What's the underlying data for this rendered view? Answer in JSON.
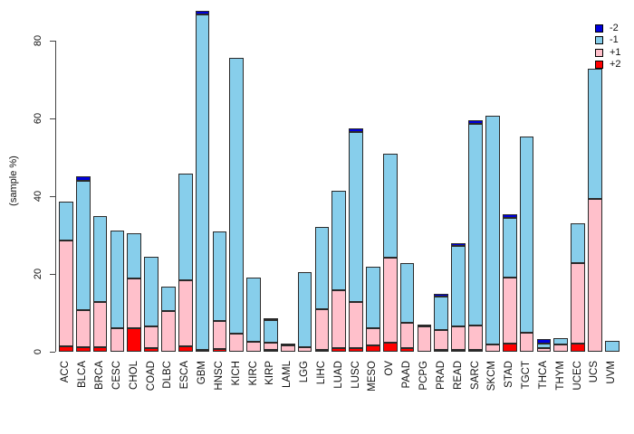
{
  "figure": {
    "background": "#ffffff"
  },
  "axis": {
    "y_title": "(sample %)",
    "y_ticks": [
      "0",
      "20",
      "40",
      "60",
      "80"
    ]
  },
  "legend": {
    "items": [
      {
        "label": "-2",
        "color": "#0000DC"
      },
      {
        "label": "-1",
        "color": "#87CEEB"
      },
      {
        "label": "+1",
        "color": "#FFC0CB"
      },
      {
        "label": "+2",
        "color": "#FF0000"
      }
    ]
  },
  "chart_data": {
    "type": "bar",
    "stacked": true,
    "title": "",
    "xlabel": "",
    "ylabel": "(sample %)",
    "ylim": [
      0,
      88
    ],
    "yticks": [
      0,
      20,
      40,
      60,
      80
    ],
    "grid": false,
    "legend_position": "top-right",
    "categories": [
      "ACC",
      "BLCA",
      "BRCA",
      "CESC",
      "CHOL",
      "COAD",
      "DLBC",
      "ESCA",
      "GBM",
      "HNSC",
      "KICH",
      "KIRC",
      "KIRP",
      "LAML",
      "LGG",
      "LIHC",
      "LUAD",
      "LUSC",
      "MESO",
      "OV",
      "PAAD",
      "PCPG",
      "PRAD",
      "READ",
      "SARC",
      "SKCM",
      "STAD",
      "TGCT",
      "THCA",
      "THYM",
      "UCEC",
      "UCS",
      "UVM"
    ],
    "series": [
      {
        "name": "+2",
        "color": "#FF0000",
        "values": [
          1.5,
          1.2,
          1.2,
          0,
          6.0,
          0.9,
          0,
          1.5,
          0,
          0.8,
          0,
          0,
          0.5,
          0,
          0,
          0.5,
          0.9,
          0.9,
          1.6,
          2.3,
          0.9,
          0,
          0.5,
          0.4,
          0.4,
          0,
          2.1,
          0,
          0,
          0,
          2.1,
          0,
          0
        ]
      },
      {
        "name": "+1",
        "color": "#FFC0CB",
        "values": [
          27.2,
          9.4,
          11.7,
          6.1,
          12.8,
          5.5,
          10.5,
          16.9,
          0.5,
          7.1,
          4.7,
          2.5,
          1.8,
          1.6,
          1.2,
          10.4,
          14.8,
          12.0,
          4.4,
          22.0,
          6.6,
          6.4,
          5.1,
          6.2,
          6.3,
          1.9,
          16.9,
          4.8,
          1.0,
          1.8,
          20.8,
          39.3,
          0
        ]
      },
      {
        "name": "-1",
        "color": "#87CEEB",
        "values": [
          10.0,
          33.4,
          21.9,
          25.0,
          11.6,
          18.1,
          6.2,
          27.5,
          86.3,
          23.0,
          70.8,
          16.6,
          5.9,
          0.5,
          19.3,
          21.2,
          25.7,
          43.7,
          15.9,
          26.6,
          15.3,
          0.5,
          8.5,
          20.5,
          51.8,
          58.8,
          15.5,
          50.5,
          1.1,
          1.6,
          10.1,
          33.5,
          2.7
        ]
      },
      {
        "name": "-2",
        "color": "#0000DC",
        "values": [
          0,
          1.1,
          0,
          0,
          0,
          0,
          0,
          0,
          0.9,
          0,
          0,
          0,
          0.5,
          0,
          0,
          0,
          0,
          0.9,
          0,
          0,
          0,
          0,
          0.8,
          0.8,
          1.0,
          0,
          0.8,
          0,
          1.2,
          0,
          0,
          0,
          0
        ]
      }
    ]
  }
}
